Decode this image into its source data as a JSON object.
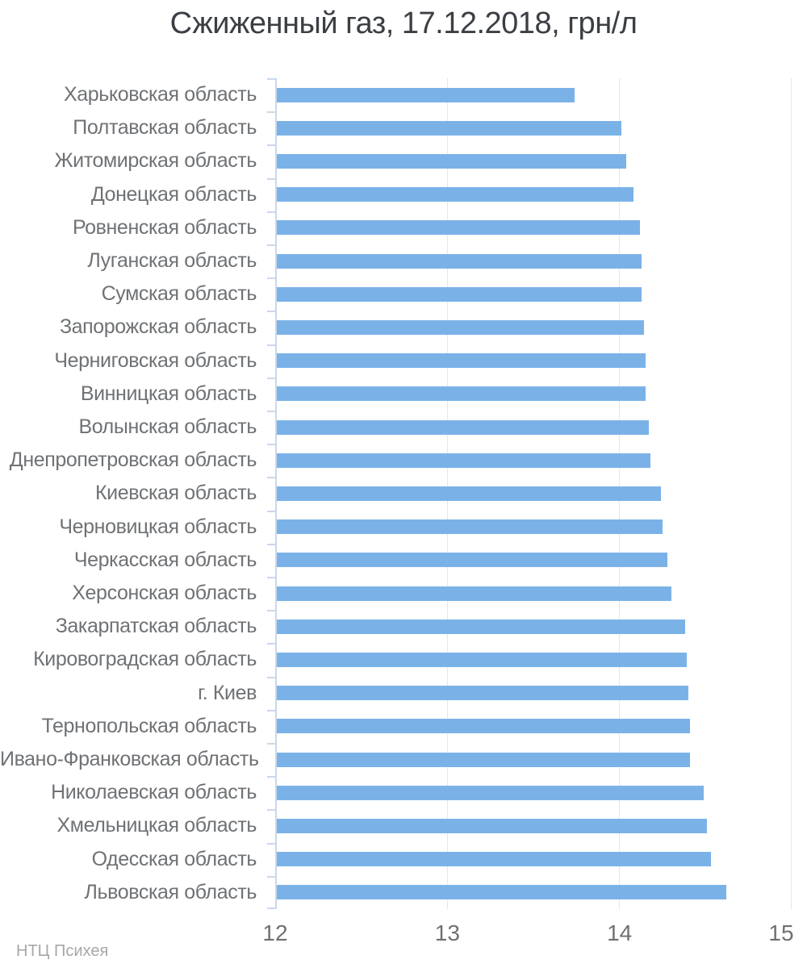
{
  "chart_data": {
    "type": "bar",
    "orientation": "horizontal",
    "title": "Сжиженный газ, 17.12.2018, грн/л",
    "source": "НТЦ Психея",
    "xlabel": "",
    "ylabel": "",
    "xlim": [
      12,
      15
    ],
    "xticks": [
      12,
      13,
      14,
      15
    ],
    "grid": true,
    "legend": "none",
    "categories": [
      "Харьковская область",
      "Полтавская область",
      "Житомирская область",
      "Донецкая область",
      "Ровненская область",
      "Луганская область",
      "Сумская область",
      "Запорожская область",
      "Черниговская область",
      "Винницкая область",
      "Волынская область",
      "Днепропетровская область",
      "Киевская область",
      "Черновицкая область",
      "Черкасская область",
      "Херсонская область",
      "Закарпатская область",
      "Кировоградская область",
      "г. Киев",
      "Тернопольская область",
      "Ивано-Франковская область",
      "Николаевская область",
      "Хмельницкая область",
      "Одесская область",
      "Львовская область"
    ],
    "values": [
      13.74,
      14.01,
      14.04,
      14.08,
      14.12,
      14.13,
      14.13,
      14.14,
      14.15,
      14.15,
      14.17,
      14.18,
      14.24,
      14.25,
      14.28,
      14.3,
      14.38,
      14.39,
      14.4,
      14.41,
      14.41,
      14.49,
      14.51,
      14.53,
      14.62
    ],
    "colors": {
      "bar": "#7ab2e8",
      "axis_line": "#c9d8ec",
      "gridline": "#e7e7e7",
      "title_text": "#3b3f44",
      "category_text": "#6f7275",
      "tick_text": "#6e7174",
      "source_text": "#a7a7a7",
      "background": "#ffffff"
    }
  }
}
